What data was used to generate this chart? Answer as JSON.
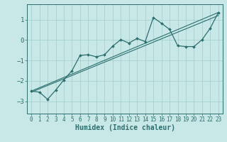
{
  "bg_color": "#c8e8e8",
  "grid_color": "#a0cccc",
  "line_color": "#2d6e6e",
  "xlabel": "Humidex (Indice chaleur)",
  "xlim": [
    -0.5,
    23.5
  ],
  "ylim": [
    -3.6,
    1.75
  ],
  "x_ticks": [
    0,
    1,
    2,
    3,
    4,
    5,
    6,
    7,
    8,
    9,
    10,
    11,
    12,
    13,
    14,
    15,
    16,
    17,
    18,
    19,
    20,
    21,
    22,
    23
  ],
  "y_ticks": [
    -3,
    -2,
    -1,
    0,
    1
  ],
  "curve1_x": [
    0,
    1,
    2,
    3,
    4,
    5,
    6,
    7,
    8,
    9,
    10,
    11,
    12,
    13,
    14,
    15,
    16,
    17,
    18,
    19,
    20,
    21,
    22,
    23
  ],
  "curve1_y": [
    -2.5,
    -2.55,
    -2.9,
    -2.45,
    -1.95,
    -1.5,
    -0.75,
    -0.72,
    -0.82,
    -0.72,
    -0.3,
    0.02,
    -0.15,
    0.08,
    -0.08,
    1.1,
    0.82,
    0.52,
    -0.28,
    -0.32,
    -0.32,
    0.02,
    0.58,
    1.35
  ],
  "line2_x": [
    0,
    23
  ],
  "line2_y": [
    -2.5,
    1.35
  ],
  "line3_x": [
    0,
    23
  ],
  "line3_y": [
    -2.55,
    1.2
  ]
}
